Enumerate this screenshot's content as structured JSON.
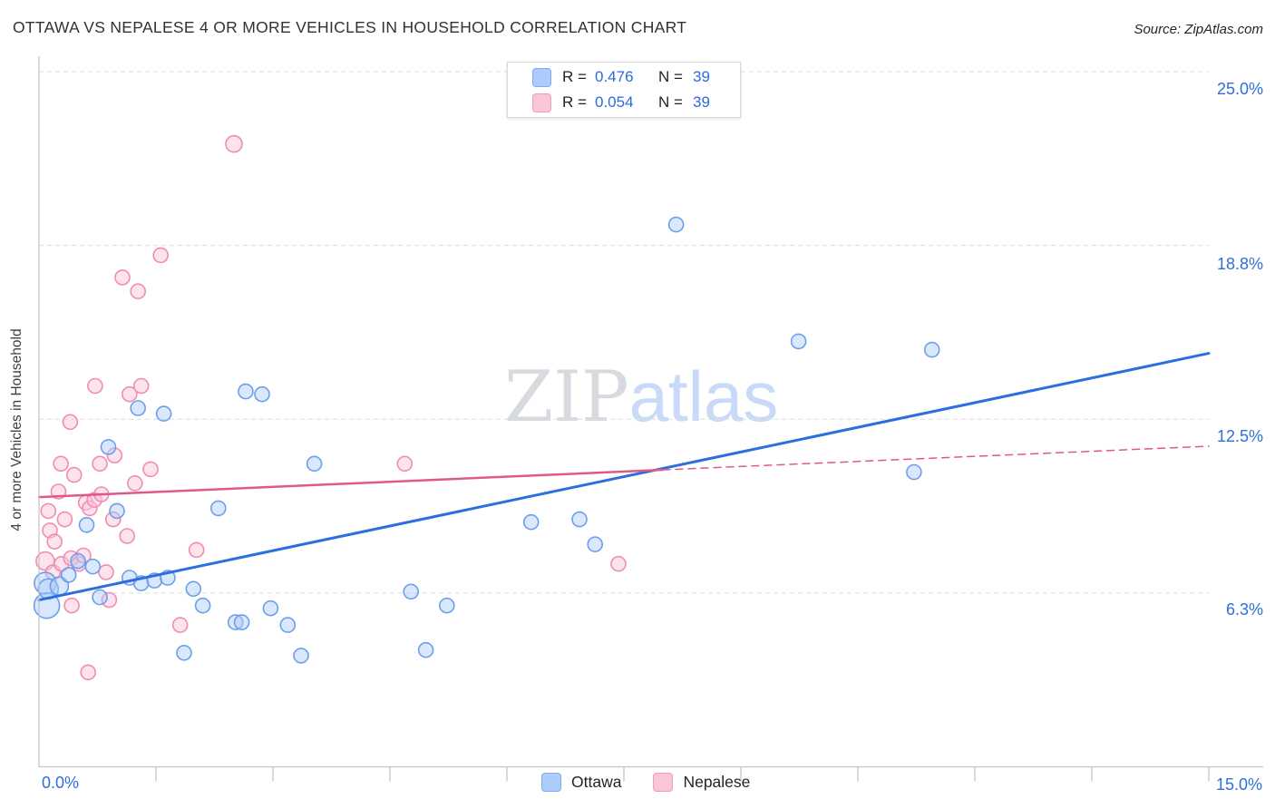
{
  "title": "OTTAWA VS NEPALESE 4 OR MORE VEHICLES IN HOUSEHOLD CORRELATION CHART",
  "source": "Source: ZipAtlas.com",
  "watermark": {
    "part1": "ZIP",
    "part2": "atlas"
  },
  "y_axis_label": "4 or more Vehicles in Household",
  "axis_labels": {
    "y_25": "25.0%",
    "y_188": "18.8%",
    "y_125": "12.5%",
    "y_63": "6.3%",
    "x_min": "0.0%",
    "x_max": "15.0%"
  },
  "stats_legend": {
    "rows": [
      {
        "r_label": "R =",
        "r_value": "0.476",
        "n_label": "N =",
        "n_value": "39",
        "swatch_fill": "#aecbfa",
        "swatch_border": "#7baaf7"
      },
      {
        "r_label": "R =",
        "r_value": "0.054",
        "n_label": "N =",
        "n_value": "39",
        "swatch_fill": "#f9c6d9",
        "swatch_border": "#f49ebc"
      }
    ]
  },
  "bottom_legend": {
    "items": [
      {
        "label": "Ottawa",
        "swatch_fill": "#aecbfa",
        "swatch_border": "#7baaf7"
      },
      {
        "label": "Nepalese",
        "swatch_fill": "#f9c6d9",
        "swatch_border": "#f49ebc"
      }
    ]
  },
  "chart_data": {
    "type": "scatter",
    "title": "Ottawa vs Nepalese 4 or more Vehicles in Household",
    "xlabel": "",
    "ylabel": "4 or more Vehicles in Household",
    "xlim": [
      0,
      15
    ],
    "ylim": [
      0,
      25
    ],
    "x_tick_step_pct": 1.5,
    "y_gridlines_pct": [
      6.25,
      12.5,
      18.75,
      25
    ],
    "y_gridline_labels": [
      "6.3%",
      "12.5%",
      "18.8%",
      "25.0%"
    ],
    "grid": true,
    "legend_position": "bottom-center",
    "series": [
      {
        "name": "Ottawa",
        "R": 0.476,
        "N": 39,
        "point_fill": "rgba(174,203,250,0.45)",
        "point_stroke": "#6d9eea",
        "points": [
          [
            0.08,
            6.6,
            12
          ],
          [
            0.1,
            5.8,
            14
          ],
          [
            0.12,
            6.4,
            11
          ],
          [
            0.26,
            6.5,
            10
          ],
          [
            0.38,
            6.9,
            8
          ],
          [
            0.5,
            7.4,
            8
          ],
          [
            0.61,
            8.7,
            8
          ],
          [
            0.69,
            7.2,
            8
          ],
          [
            0.78,
            6.1,
            8
          ],
          [
            0.89,
            11.5,
            8
          ],
          [
            1.0,
            9.2,
            8
          ],
          [
            1.16,
            6.8,
            8
          ],
          [
            1.27,
            12.9,
            8
          ],
          [
            1.31,
            6.6,
            8
          ],
          [
            1.48,
            6.7,
            8
          ],
          [
            1.6,
            12.7,
            8
          ],
          [
            1.65,
            6.8,
            8
          ],
          [
            1.86,
            4.1,
            8
          ],
          [
            1.98,
            6.4,
            8
          ],
          [
            2.1,
            5.8,
            8
          ],
          [
            2.3,
            9.3,
            8
          ],
          [
            2.52,
            5.2,
            8
          ],
          [
            2.6,
            5.2,
            8
          ],
          [
            2.65,
            13.5,
            8
          ],
          [
            2.86,
            13.4,
            8
          ],
          [
            2.97,
            5.7,
            8
          ],
          [
            3.19,
            5.1,
            8
          ],
          [
            3.36,
            4.0,
            8
          ],
          [
            3.53,
            10.9,
            8
          ],
          [
            4.77,
            6.3,
            8
          ],
          [
            4.96,
            4.2,
            8
          ],
          [
            5.23,
            5.8,
            8
          ],
          [
            6.31,
            8.8,
            8
          ],
          [
            6.93,
            8.9,
            8
          ],
          [
            7.13,
            8.0,
            8
          ],
          [
            8.17,
            19.5,
            8
          ],
          [
            9.74,
            15.3,
            8
          ],
          [
            11.22,
            10.6,
            8
          ],
          [
            11.45,
            15.0,
            8
          ]
        ]
      },
      {
        "name": "Nepalese",
        "R": 0.054,
        "N": 39,
        "point_fill": "rgba(249,199,217,0.5)",
        "point_stroke": "#f08cb1",
        "points": [
          [
            0.08,
            7.4,
            10
          ],
          [
            0.12,
            9.2,
            8
          ],
          [
            0.14,
            8.5,
            8
          ],
          [
            0.18,
            7.0,
            8
          ],
          [
            0.2,
            8.1,
            8
          ],
          [
            0.25,
            9.9,
            8
          ],
          [
            0.28,
            10.9,
            8
          ],
          [
            0.29,
            7.3,
            8
          ],
          [
            0.33,
            8.9,
            8
          ],
          [
            0.4,
            12.4,
            8
          ],
          [
            0.41,
            7.5,
            8
          ],
          [
            0.42,
            5.8,
            8
          ],
          [
            0.45,
            10.5,
            8
          ],
          [
            0.51,
            7.3,
            8
          ],
          [
            0.57,
            7.6,
            8
          ],
          [
            0.6,
            9.5,
            8
          ],
          [
            0.63,
            3.4,
            8
          ],
          [
            0.65,
            9.3,
            8
          ],
          [
            0.71,
            9.6,
            8
          ],
          [
            0.72,
            13.7,
            8
          ],
          [
            0.78,
            10.9,
            8
          ],
          [
            0.8,
            9.8,
            8
          ],
          [
            0.86,
            7.0,
            8
          ],
          [
            0.9,
            6.0,
            8
          ],
          [
            0.95,
            8.9,
            8
          ],
          [
            0.97,
            11.2,
            8
          ],
          [
            1.07,
            17.6,
            8
          ],
          [
            1.13,
            8.3,
            8
          ],
          [
            1.16,
            13.4,
            8
          ],
          [
            1.23,
            10.2,
            8
          ],
          [
            1.27,
            17.1,
            8
          ],
          [
            1.31,
            13.7,
            8
          ],
          [
            1.43,
            10.7,
            8
          ],
          [
            1.56,
            18.4,
            8
          ],
          [
            1.81,
            5.1,
            8
          ],
          [
            2.02,
            7.8,
            8
          ],
          [
            2.5,
            22.4,
            9
          ],
          [
            4.69,
            10.9,
            8
          ],
          [
            7.43,
            7.3,
            8
          ]
        ]
      }
    ],
    "trendlines": [
      {
        "series": "Ottawa",
        "dashed": false,
        "x1": 0,
        "y1": 6.0,
        "x2": 15,
        "y2": 14.87,
        "color": "#2a6ee0",
        "width": 3
      },
      {
        "series": "Nepalese",
        "dashed": false,
        "x1": 0,
        "y1": 9.7,
        "x2": 8,
        "y2": 10.68,
        "color": "#e0588a",
        "width": 2.5
      },
      {
        "series": "Nepalese",
        "dashed": true,
        "x1": 8,
        "y1": 10.68,
        "x2": 15,
        "y2": 11.53,
        "color": "#e0588a",
        "width": 1.5
      }
    ]
  }
}
